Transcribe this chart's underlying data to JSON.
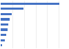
{
  "values": [
    1007,
    390,
    190,
    155,
    130,
    115,
    95,
    75,
    20
  ],
  "bar_color": "#4472c4",
  "background_color": "#ffffff",
  "xlim": [
    0,
    1150
  ],
  "bar_height": 0.45
}
